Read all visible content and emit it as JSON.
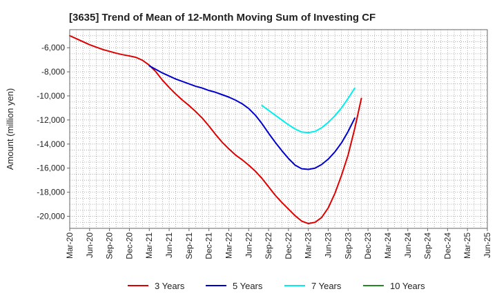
{
  "chart_data": {
    "type": "line",
    "title": "[3635]  Trend of Mean of 12-Month Moving Sum of Investing CF",
    "xlabel": "",
    "ylabel": "Amount (million yen)",
    "ylim": [
      -21000,
      -4500
    ],
    "yticks": [
      -20000,
      -18000,
      -16000,
      -14000,
      -12000,
      -10000,
      -8000,
      -6000
    ],
    "ytick_labels": [
      "-20,000",
      "-18,000",
      "-16,000",
      "-14,000",
      "-12,000",
      "-10,000",
      "-8,000",
      "-6,000"
    ],
    "xticks": [
      "Mar-20",
      "Jun-20",
      "Sep-20",
      "Dec-20",
      "Mar-21",
      "Jun-21",
      "Sep-21",
      "Dec-21",
      "Mar-22",
      "Jun-22",
      "Sep-22",
      "Dec-22",
      "Mar-23",
      "Jun-23",
      "Sep-23",
      "Dec-23",
      "Mar-24",
      "Jun-24",
      "Sep-24",
      "Dec-24",
      "Mar-25",
      "Jun-25"
    ],
    "grid": true,
    "legend_position": "bottom",
    "series": [
      {
        "name": "3 Years",
        "color": "#dd0000",
        "points": [
          [
            0,
            -5000
          ],
          [
            1,
            -5250
          ],
          [
            2,
            -5500
          ],
          [
            3,
            -5750
          ],
          [
            4,
            -5950
          ],
          [
            5,
            -6150
          ],
          [
            6,
            -6300
          ],
          [
            7,
            -6450
          ],
          [
            8,
            -6580
          ],
          [
            9,
            -6680
          ],
          [
            10,
            -6800
          ],
          [
            11,
            -7050
          ],
          [
            12,
            -7450
          ],
          [
            13,
            -8000
          ],
          [
            14,
            -8700
          ],
          [
            15,
            -9300
          ],
          [
            16,
            -9850
          ],
          [
            17,
            -10350
          ],
          [
            18,
            -10800
          ],
          [
            19,
            -11300
          ],
          [
            20,
            -11850
          ],
          [
            21,
            -12500
          ],
          [
            22,
            -13200
          ],
          [
            23,
            -13850
          ],
          [
            24,
            -14400
          ],
          [
            25,
            -14900
          ],
          [
            26,
            -15300
          ],
          [
            27,
            -15750
          ],
          [
            28,
            -16250
          ],
          [
            29,
            -16850
          ],
          [
            30,
            -17550
          ],
          [
            31,
            -18250
          ],
          [
            32,
            -18850
          ],
          [
            33,
            -19400
          ],
          [
            34,
            -19950
          ],
          [
            35,
            -20400
          ],
          [
            36,
            -20600
          ],
          [
            37,
            -20500
          ],
          [
            38,
            -20100
          ],
          [
            39,
            -19300
          ],
          [
            40,
            -18100
          ],
          [
            41,
            -16600
          ],
          [
            42,
            -14900
          ],
          [
            43,
            -12700
          ],
          [
            44,
            -10200
          ]
        ]
      },
      {
        "name": "5 Years",
        "color": "#0000cc",
        "points": [
          [
            12,
            -7500
          ],
          [
            13,
            -7800
          ],
          [
            14,
            -8100
          ],
          [
            15,
            -8350
          ],
          [
            16,
            -8600
          ],
          [
            17,
            -8800
          ],
          [
            18,
            -9000
          ],
          [
            19,
            -9200
          ],
          [
            20,
            -9350
          ],
          [
            21,
            -9550
          ],
          [
            22,
            -9700
          ],
          [
            23,
            -9900
          ],
          [
            24,
            -10100
          ],
          [
            25,
            -10350
          ],
          [
            26,
            -10650
          ],
          [
            27,
            -11050
          ],
          [
            28,
            -11600
          ],
          [
            29,
            -12300
          ],
          [
            30,
            -13100
          ],
          [
            31,
            -13850
          ],
          [
            32,
            -14550
          ],
          [
            33,
            -15200
          ],
          [
            34,
            -15750
          ],
          [
            35,
            -16050
          ],
          [
            36,
            -16100
          ],
          [
            37,
            -16000
          ],
          [
            38,
            -15700
          ],
          [
            39,
            -15250
          ],
          [
            40,
            -14650
          ],
          [
            41,
            -13900
          ],
          [
            42,
            -12950
          ],
          [
            43,
            -11850
          ]
        ]
      },
      {
        "name": "7 Years",
        "color": "#00eeee",
        "points": [
          [
            29,
            -10800
          ],
          [
            30,
            -11200
          ],
          [
            31,
            -11600
          ],
          [
            32,
            -12000
          ],
          [
            33,
            -12400
          ],
          [
            34,
            -12750
          ],
          [
            35,
            -13000
          ],
          [
            36,
            -13050
          ],
          [
            37,
            -12950
          ],
          [
            38,
            -12650
          ],
          [
            39,
            -12200
          ],
          [
            40,
            -11650
          ],
          [
            41,
            -11000
          ],
          [
            42,
            -10200
          ],
          [
            43,
            -9350
          ]
        ]
      },
      {
        "name": "10 Years",
        "color": "#228822",
        "points": []
      }
    ]
  }
}
